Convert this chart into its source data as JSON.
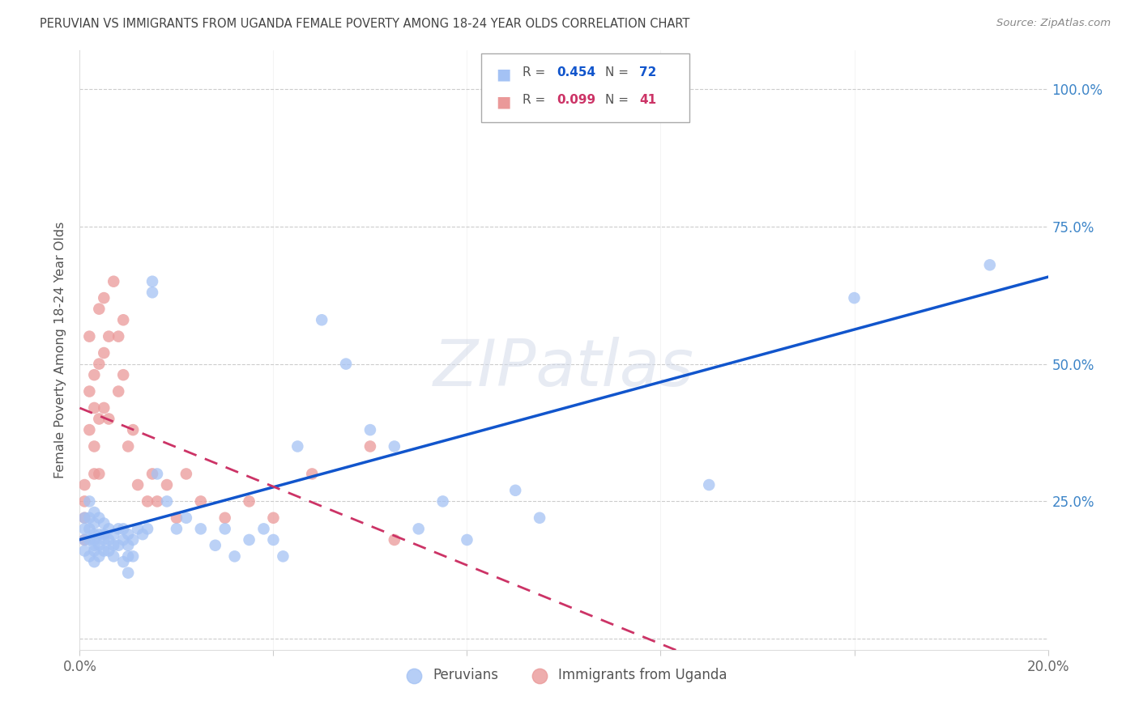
{
  "title": "PERUVIAN VS IMMIGRANTS FROM UGANDA FEMALE POVERTY AMONG 18-24 YEAR OLDS CORRELATION CHART",
  "source": "Source: ZipAtlas.com",
  "ylabel": "Female Poverty Among 18-24 Year Olds",
  "watermark": "ZIPatlas",
  "xlim": [
    0.0,
    0.2
  ],
  "ylim": [
    -0.02,
    1.07
  ],
  "yticks": [
    0.0,
    0.25,
    0.5,
    0.75,
    1.0
  ],
  "ytick_labels": [
    "",
    "25.0%",
    "50.0%",
    "75.0%",
    "100.0%"
  ],
  "xticks": [
    0.0,
    0.04,
    0.08,
    0.12,
    0.16,
    0.2
  ],
  "xtick_labels": [
    "0.0%",
    "",
    "",
    "",
    "",
    "20.0%"
  ],
  "series1_label": "Peruvians",
  "series1_R": "0.454",
  "series1_N": "72",
  "series1_color": "#a4c2f4",
  "series1_trendline_color": "#1155cc",
  "series2_label": "Immigrants from Uganda",
  "series2_R": "0.099",
  "series2_N": "41",
  "series2_color": "#ea9999",
  "series2_trendline_color": "#cc3366",
  "background_color": "#ffffff",
  "grid_color": "#cccccc",
  "title_color": "#444444",
  "right_tick_color": "#3d85c8",
  "peruvians_x": [
    0.001,
    0.001,
    0.001,
    0.001,
    0.002,
    0.002,
    0.002,
    0.002,
    0.002,
    0.003,
    0.003,
    0.003,
    0.003,
    0.003,
    0.003,
    0.003,
    0.004,
    0.004,
    0.004,
    0.004,
    0.005,
    0.005,
    0.005,
    0.005,
    0.006,
    0.006,
    0.006,
    0.007,
    0.007,
    0.007,
    0.008,
    0.008,
    0.009,
    0.009,
    0.009,
    0.01,
    0.01,
    0.01,
    0.01,
    0.011,
    0.011,
    0.012,
    0.013,
    0.014,
    0.015,
    0.015,
    0.016,
    0.018,
    0.02,
    0.022,
    0.025,
    0.028,
    0.03,
    0.032,
    0.035,
    0.038,
    0.04,
    0.042,
    0.045,
    0.05,
    0.055,
    0.06,
    0.065,
    0.07,
    0.075,
    0.08,
    0.09,
    0.095,
    0.1,
    0.13,
    0.16,
    0.188
  ],
  "peruvians_y": [
    0.2,
    0.22,
    0.18,
    0.16,
    0.25,
    0.22,
    0.2,
    0.18,
    0.15,
    0.23,
    0.21,
    0.19,
    0.18,
    0.17,
    0.16,
    0.14,
    0.22,
    0.19,
    0.17,
    0.15,
    0.21,
    0.19,
    0.18,
    0.16,
    0.2,
    0.18,
    0.16,
    0.19,
    0.17,
    0.15,
    0.2,
    0.17,
    0.2,
    0.18,
    0.14,
    0.19,
    0.17,
    0.15,
    0.12,
    0.18,
    0.15,
    0.2,
    0.19,
    0.2,
    0.65,
    0.63,
    0.3,
    0.25,
    0.2,
    0.22,
    0.2,
    0.17,
    0.2,
    0.15,
    0.18,
    0.2,
    0.18,
    0.15,
    0.35,
    0.58,
    0.5,
    0.38,
    0.35,
    0.2,
    0.25,
    0.18,
    0.27,
    0.22,
    0.97,
    0.28,
    0.62,
    0.68
  ],
  "uganda_x": [
    0.001,
    0.001,
    0.001,
    0.001,
    0.002,
    0.002,
    0.002,
    0.003,
    0.003,
    0.003,
    0.003,
    0.004,
    0.004,
    0.004,
    0.004,
    0.005,
    0.005,
    0.005,
    0.006,
    0.006,
    0.007,
    0.008,
    0.008,
    0.009,
    0.009,
    0.01,
    0.011,
    0.012,
    0.014,
    0.015,
    0.016,
    0.018,
    0.02,
    0.022,
    0.025,
    0.03,
    0.035,
    0.04,
    0.048,
    0.06,
    0.065
  ],
  "uganda_y": [
    0.28,
    0.25,
    0.22,
    0.18,
    0.55,
    0.45,
    0.38,
    0.48,
    0.42,
    0.35,
    0.3,
    0.6,
    0.5,
    0.4,
    0.3,
    0.62,
    0.52,
    0.42,
    0.55,
    0.4,
    0.65,
    0.55,
    0.45,
    0.58,
    0.48,
    0.35,
    0.38,
    0.28,
    0.25,
    0.3,
    0.25,
    0.28,
    0.22,
    0.3,
    0.25,
    0.22,
    0.25,
    0.22,
    0.3,
    0.35,
    0.18
  ],
  "figsize": [
    14.06,
    8.92
  ],
  "dpi": 100
}
